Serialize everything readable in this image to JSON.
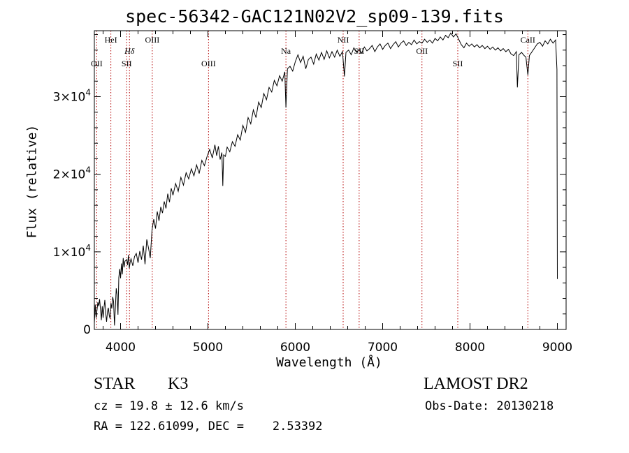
{
  "chart_data": {
    "type": "line",
    "title": "spec-56342-GAC121N02V2_sp09-139.fits",
    "xlabel": "Wavelength (Å)",
    "ylabel": "Flux (relative)",
    "xlim": [
      3700,
      9100
    ],
    "ylim": [
      0,
      38500
    ],
    "x_ticks": [
      4000,
      5000,
      6000,
      7000,
      8000,
      9000
    ],
    "x_tick_labels": [
      "4000",
      "5000",
      "6000",
      "7000",
      "8000",
      "9000"
    ],
    "y_ticks": [
      0,
      10000,
      20000,
      30000
    ],
    "y_tick_labels": [
      {
        "mantissa": "0",
        "exp": ""
      },
      {
        "mantissa": "1×10",
        "exp": "4"
      },
      {
        "mantissa": "2×10",
        "exp": "4"
      },
      {
        "mantissa": "3×10",
        "exp": "4"
      }
    ],
    "line_color": "#000000",
    "marker_color": "#b40000",
    "spectral_lines": [
      {
        "label": "OII",
        "wavelength": 3727,
        "label_row": 2
      },
      {
        "label": "HeI",
        "wavelength": 3889,
        "label_row": 0
      },
      {
        "label": "SII",
        "wavelength": 4070,
        "label_row": 2
      },
      {
        "label": "Hδ",
        "wavelength": 4102,
        "label_row": 1
      },
      {
        "label": "OIII",
        "wavelength": 4363,
        "label_row": 0
      },
      {
        "label": "OIII",
        "wavelength": 5007,
        "label_row": 2
      },
      {
        "label": "Na",
        "wavelength": 5893,
        "label_row": 1
      },
      {
        "label": "NII",
        "wavelength": 6548,
        "label_row": 0
      },
      {
        "label": "SII",
        "wavelength": 6731,
        "label_row": 1
      },
      {
        "label": "OII",
        "wavelength": 7450,
        "label_row": 1
      },
      {
        "label": "SII",
        "wavelength": 7860,
        "label_row": 2
      },
      {
        "label": "CaII",
        "wavelength": 8662,
        "label_row": 0
      }
    ],
    "spectrum": [
      [
        3700,
        800
      ],
      [
        3710,
        3200
      ],
      [
        3720,
        1500
      ],
      [
        3730,
        2500
      ],
      [
        3740,
        3500
      ],
      [
        3750,
        3000
      ],
      [
        3760,
        3900
      ],
      [
        3770,
        2600
      ],
      [
        3780,
        1200
      ],
      [
        3790,
        3000
      ],
      [
        3800,
        1500
      ],
      [
        3810,
        2800
      ],
      [
        3820,
        3800
      ],
      [
        3830,
        2100
      ],
      [
        3840,
        1000
      ],
      [
        3850,
        2300
      ],
      [
        3860,
        2800
      ],
      [
        3870,
        1800
      ],
      [
        3880,
        1400
      ],
      [
        3890,
        3400
      ],
      [
        3900,
        2700
      ],
      [
        3910,
        4200
      ],
      [
        3920,
        3600
      ],
      [
        3930,
        500
      ],
      [
        3940,
        2600
      ],
      [
        3950,
        5300
      ],
      [
        3960,
        4500
      ],
      [
        3970,
        1900
      ],
      [
        3980,
        6700
      ],
      [
        3990,
        7800
      ],
      [
        4000,
        6600
      ],
      [
        4010,
        8500
      ],
      [
        4020,
        7100
      ],
      [
        4030,
        9200
      ],
      [
        4040,
        8000
      ],
      [
        4050,
        8800
      ],
      [
        4070,
        9000
      ],
      [
        4080,
        8300
      ],
      [
        4090,
        9600
      ],
      [
        4100,
        7900
      ],
      [
        4110,
        8700
      ],
      [
        4120,
        9100
      ],
      [
        4140,
        8200
      ],
      [
        4160,
        9400
      ],
      [
        4180,
        9800
      ],
      [
        4200,
        8600
      ],
      [
        4220,
        10100
      ],
      [
        4240,
        9000
      ],
      [
        4260,
        10800
      ],
      [
        4280,
        8400
      ],
      [
        4300,
        11600
      ],
      [
        4320,
        10500
      ],
      [
        4340,
        9200
      ],
      [
        4360,
        12800
      ],
      [
        4380,
        14200
      ],
      [
        4400,
        13000
      ],
      [
        4420,
        15200
      ],
      [
        4440,
        14000
      ],
      [
        4460,
        15800
      ],
      [
        4480,
        15000
      ],
      [
        4500,
        16500
      ],
      [
        4520,
        15600
      ],
      [
        4540,
        17500
      ],
      [
        4560,
        16400
      ],
      [
        4580,
        18200
      ],
      [
        4600,
        17300
      ],
      [
        4630,
        18800
      ],
      [
        4660,
        17800
      ],
      [
        4690,
        19600
      ],
      [
        4720,
        18600
      ],
      [
        4750,
        20200
      ],
      [
        4780,
        19400
      ],
      [
        4810,
        20700
      ],
      [
        4840,
        19800
      ],
      [
        4870,
        21200
      ],
      [
        4900,
        20100
      ],
      [
        4930,
        21800
      ],
      [
        4960,
        21100
      ],
      [
        4990,
        22300
      ],
      [
        5020,
        23200
      ],
      [
        5050,
        22100
      ],
      [
        5080,
        23800
      ],
      [
        5100,
        22400
      ],
      [
        5120,
        23600
      ],
      [
        5140,
        21900
      ],
      [
        5160,
        22800
      ],
      [
        5170,
        18500
      ],
      [
        5180,
        22500
      ],
      [
        5200,
        22300
      ],
      [
        5220,
        23500
      ],
      [
        5250,
        22900
      ],
      [
        5280,
        24200
      ],
      [
        5310,
        23600
      ],
      [
        5340,
        25100
      ],
      [
        5370,
        24400
      ],
      [
        5400,
        26300
      ],
      [
        5430,
        25400
      ],
      [
        5460,
        27300
      ],
      [
        5490,
        26500
      ],
      [
        5520,
        28300
      ],
      [
        5550,
        27300
      ],
      [
        5580,
        29300
      ],
      [
        5610,
        28600
      ],
      [
        5640,
        30400
      ],
      [
        5670,
        29600
      ],
      [
        5700,
        31200
      ],
      [
        5730,
        30600
      ],
      [
        5760,
        32100
      ],
      [
        5790,
        31400
      ],
      [
        5820,
        32700
      ],
      [
        5850,
        32000
      ],
      [
        5880,
        33200
      ],
      [
        5893,
        28600
      ],
      [
        5910,
        33600
      ],
      [
        5940,
        33900
      ],
      [
        5970,
        33300
      ],
      [
        6000,
        34500
      ],
      [
        6030,
        35400
      ],
      [
        6060,
        34400
      ],
      [
        6090,
        35200
      ],
      [
        6120,
        33600
      ],
      [
        6150,
        34800
      ],
      [
        6180,
        35100
      ],
      [
        6210,
        34200
      ],
      [
        6240,
        35500
      ],
      [
        6270,
        34700
      ],
      [
        6300,
        35700
      ],
      [
        6330,
        34800
      ],
      [
        6360,
        35900
      ],
      [
        6390,
        35000
      ],
      [
        6420,
        35800
      ],
      [
        6450,
        35100
      ],
      [
        6480,
        36000
      ],
      [
        6510,
        35200
      ],
      [
        6540,
        35800
      ],
      [
        6563,
        32600
      ],
      [
        6580,
        35700
      ],
      [
        6610,
        36000
      ],
      [
        6640,
        35400
      ],
      [
        6670,
        36300
      ],
      [
        6700,
        35700
      ],
      [
        6730,
        36100
      ],
      [
        6760,
        35600
      ],
      [
        6790,
        36400
      ],
      [
        6820,
        35900
      ],
      [
        6850,
        36200
      ],
      [
        6880,
        36600
      ],
      [
        6910,
        35800
      ],
      [
        6940,
        36400
      ],
      [
        6970,
        36800
      ],
      [
        7000,
        36100
      ],
      [
        7030,
        36600
      ],
      [
        7060,
        36900
      ],
      [
        7090,
        36200
      ],
      [
        7120,
        36700
      ],
      [
        7150,
        37100
      ],
      [
        7180,
        36400
      ],
      [
        7210,
        36900
      ],
      [
        7240,
        37200
      ],
      [
        7270,
        36600
      ],
      [
        7300,
        37000
      ],
      [
        7330,
        36700
      ],
      [
        7360,
        37300
      ],
      [
        7390,
        36800
      ],
      [
        7420,
        37100
      ],
      [
        7450,
        36900
      ],
      [
        7480,
        37400
      ],
      [
        7510,
        37000
      ],
      [
        7540,
        37300
      ],
      [
        7570,
        36900
      ],
      [
        7600,
        37500
      ],
      [
        7630,
        37200
      ],
      [
        7660,
        37700
      ],
      [
        7690,
        37300
      ],
      [
        7720,
        37900
      ],
      [
        7750,
        37600
      ],
      [
        7780,
        38200
      ],
      [
        7810,
        37700
      ],
      [
        7840,
        38100
      ],
      [
        7870,
        37400
      ],
      [
        7900,
        36700
      ],
      [
        7930,
        36300
      ],
      [
        7960,
        36900
      ],
      [
        7990,
        36500
      ],
      [
        8020,
        36800
      ],
      [
        8050,
        36400
      ],
      [
        8080,
        36700
      ],
      [
        8110,
        36300
      ],
      [
        8140,
        36600
      ],
      [
        8170,
        36200
      ],
      [
        8200,
        36500
      ],
      [
        8230,
        36100
      ],
      [
        8260,
        36400
      ],
      [
        8290,
        36000
      ],
      [
        8320,
        36300
      ],
      [
        8350,
        35900
      ],
      [
        8380,
        36200
      ],
      [
        8410,
        35800
      ],
      [
        8440,
        36100
      ],
      [
        8470,
        35500
      ],
      [
        8500,
        35300
      ],
      [
        8530,
        35800
      ],
      [
        8542,
        31200
      ],
      [
        8560,
        35400
      ],
      [
        8590,
        35700
      ],
      [
        8620,
        35300
      ],
      [
        8640,
        35100
      ],
      [
        8662,
        32800
      ],
      [
        8680,
        35300
      ],
      [
        8710,
        35800
      ],
      [
        8740,
        36300
      ],
      [
        8770,
        36800
      ],
      [
        8800,
        37000
      ],
      [
        8830,
        36500
      ],
      [
        8860,
        37200
      ],
      [
        8890,
        36800
      ],
      [
        8920,
        37400
      ],
      [
        8950,
        36900
      ],
      [
        8980,
        37300
      ],
      [
        8995,
        33500
      ],
      [
        9000,
        6500
      ]
    ]
  },
  "info": {
    "object_class": "STAR",
    "subclass": "K3",
    "survey": "LAMOST DR2",
    "redshift": "cz = 19.8 ± 12.6 km/s",
    "obs_date": "Obs-Date: 20130218",
    "coordinates": "RA = 122.61099, DEC =    2.53392"
  }
}
